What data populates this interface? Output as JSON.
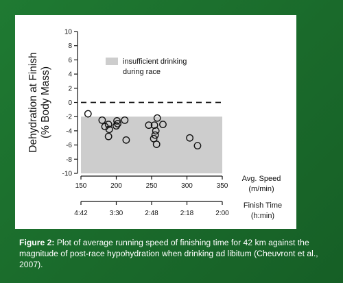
{
  "chart_data": {
    "type": "scatter",
    "ylabel_line1": "Dehydration at Finish",
    "ylabel_line2": "(% Body Mass)",
    "xlabel_speed_line1": "Avg. Speed",
    "xlabel_speed_line2": "(m/min)",
    "xlabel_time_line1": "Finish Time",
    "xlabel_time_line2": "(h:min)",
    "xlim": [
      150,
      350
    ],
    "ylim": [
      -10,
      10
    ],
    "yticks": [
      10,
      8,
      6,
      4,
      2,
      0,
      -2,
      -4,
      -6,
      -8,
      -10
    ],
    "yticklabels": [
      "10",
      "8",
      "6",
      "4",
      "2",
      "0",
      "-2",
      "-4",
      "-6",
      "-8",
      "-10"
    ],
    "xticks": [
      150,
      200,
      250,
      300,
      350
    ],
    "xticklabels": [
      "150",
      "200",
      "250",
      "300",
      "350"
    ],
    "time_ticks": [
      150,
      200,
      250,
      300,
      350
    ],
    "time_ticklabels": [
      "4:42",
      "3:30",
      "2:48",
      "2:18",
      "2:00"
    ],
    "reference_line_y": 0,
    "shaded_region": {
      "y_from": -10,
      "y_to": -2,
      "label_line1": "insufficient drinking",
      "label_line2": "during race"
    },
    "points": [
      {
        "x": 160,
        "y": -1.6
      },
      {
        "x": 180,
        "y": -2.5
      },
      {
        "x": 184,
        "y": -3.4
      },
      {
        "x": 189,
        "y": -3.1
      },
      {
        "x": 190,
        "y": -3.8
      },
      {
        "x": 189,
        "y": -4.8
      },
      {
        "x": 200,
        "y": -3.3
      },
      {
        "x": 201,
        "y": -2.6
      },
      {
        "x": 202,
        "y": -3.0
      },
      {
        "x": 212,
        "y": -2.5
      },
      {
        "x": 214,
        "y": -5.3
      },
      {
        "x": 246,
        "y": -3.2
      },
      {
        "x": 254,
        "y": -3.2
      },
      {
        "x": 258,
        "y": -2.2
      },
      {
        "x": 256,
        "y": -4.0
      },
      {
        "x": 255,
        "y": -4.6
      },
      {
        "x": 253,
        "y": -5.1
      },
      {
        "x": 257,
        "y": -5.9
      },
      {
        "x": 266,
        "y": -3.1
      },
      {
        "x": 304,
        "y": -5.0
      },
      {
        "x": 315,
        "y": -6.1
      }
    ]
  },
  "caption": {
    "label": "Figure 2:",
    "text": " Plot of average running speed of finishing time for 42 km against the magnitude of post-race hypohydration when drinking ad libitum (Cheuvront et al., 2007)."
  }
}
